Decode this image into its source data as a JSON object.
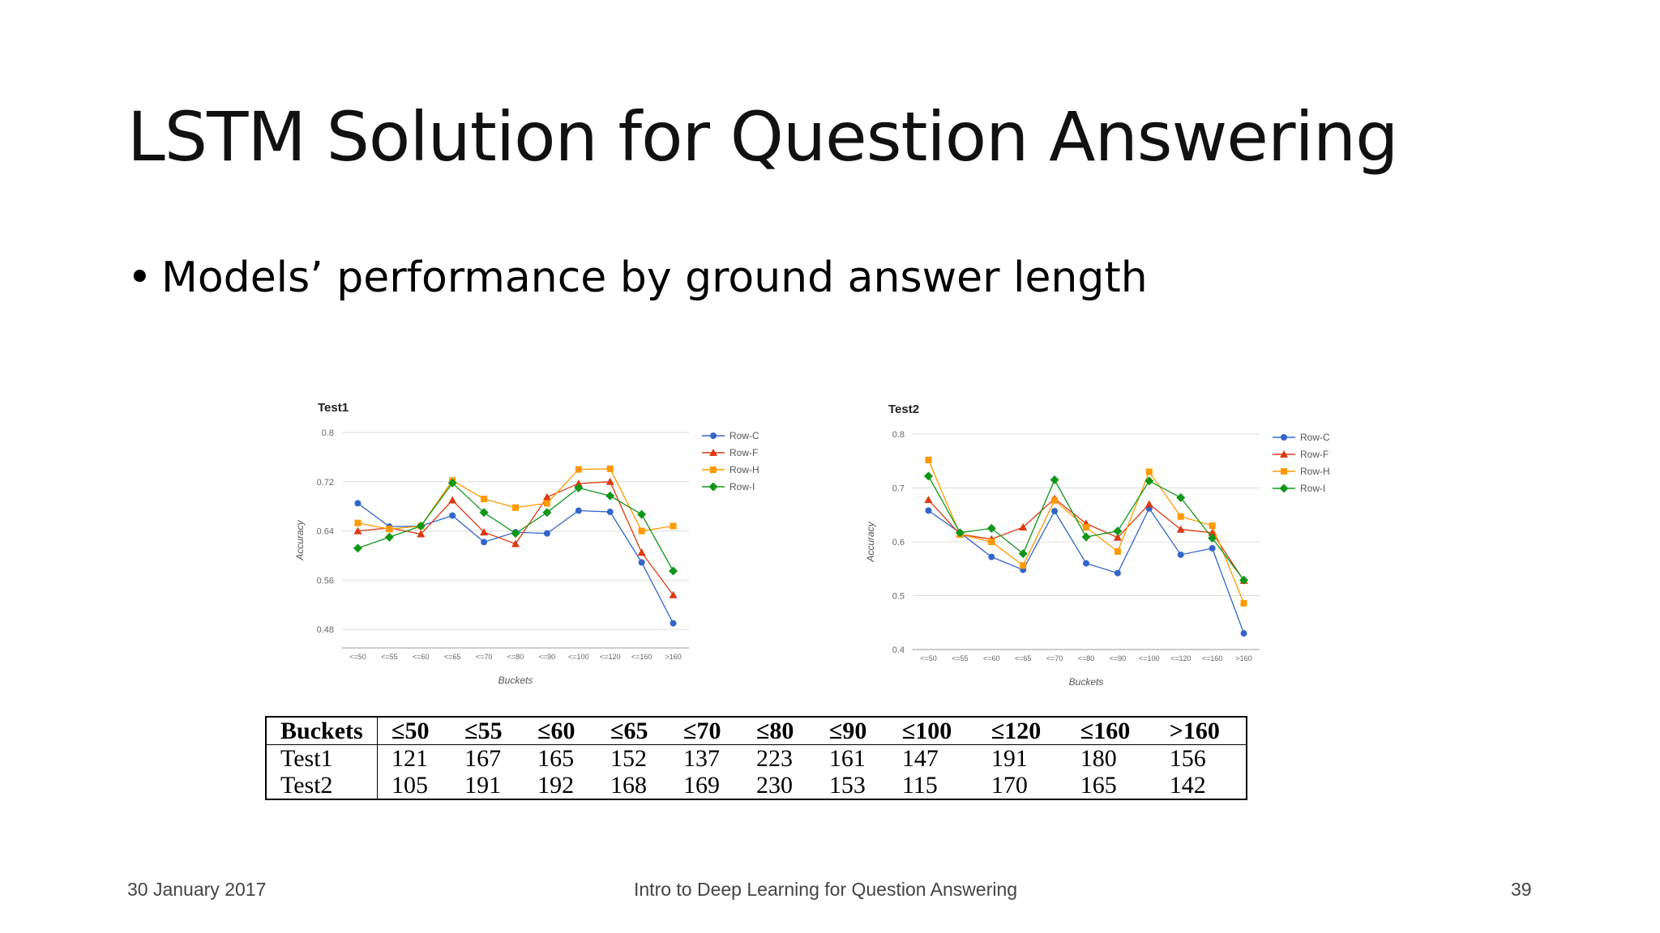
{
  "slide": {
    "title": "LSTM Solution for Question Answering",
    "bullet_mark": "•",
    "bullet": "Models’ performance by ground answer length"
  },
  "footer": {
    "date": "30 January 2017",
    "center": "Intro to Deep Learning for Question Answering",
    "page": "39"
  },
  "chart_data": [
    {
      "type": "line",
      "title": "Test1",
      "xlabel": "Buckets",
      "ylabel": "Accuracy",
      "categories": [
        "<=50",
        "<=55",
        "<=60",
        "<=65",
        "<=70",
        "<=80",
        "<=90",
        "<=100",
        "<=120",
        "<=160",
        ">160"
      ],
      "ylim": [
        0.45,
        0.8
      ],
      "yticks": [
        "0.8",
        "0.72",
        "0.64",
        "0.56",
        "0.48"
      ],
      "grid": true,
      "legend": "right",
      "series": [
        {
          "name": "Row-C",
          "color": "#3366cc",
          "marker": "circle",
          "values": [
            0.685,
            0.647,
            0.648,
            0.665,
            0.622,
            0.638,
            0.636,
            0.673,
            0.671,
            0.589,
            0.49
          ]
        },
        {
          "name": "Row-F",
          "color": "#dc3912",
          "marker": "triangle",
          "values": [
            0.64,
            0.645,
            0.635,
            0.69,
            0.638,
            0.619,
            0.695,
            0.717,
            0.72,
            0.605,
            0.536
          ]
        },
        {
          "name": "Row-H",
          "color": "#ff9900",
          "marker": "square",
          "values": [
            0.653,
            0.643,
            0.648,
            0.722,
            0.692,
            0.678,
            0.685,
            0.74,
            0.741,
            0.64,
            0.648
          ]
        },
        {
          "name": "Row-I",
          "color": "#109618",
          "marker": "diamond",
          "values": [
            0.612,
            0.63,
            0.648,
            0.718,
            0.67,
            0.636,
            0.67,
            0.71,
            0.697,
            0.667,
            0.575
          ]
        }
      ]
    },
    {
      "type": "line",
      "title": "Test2",
      "xlabel": "Buckets",
      "ylabel": "Accuracy",
      "categories": [
        "<=50",
        "<=55",
        "<=60",
        "<=65",
        "<=70",
        "<=80",
        "<=90",
        "<=100",
        "<=120",
        "<=160",
        ">160"
      ],
      "ylim": [
        0.4,
        0.8
      ],
      "yticks": [
        "0.8",
        "0.7",
        "0.6",
        "0.5",
        "0.4"
      ],
      "grid": true,
      "legend": "right",
      "series": [
        {
          "name": "Row-C",
          "color": "#3366cc",
          "marker": "circle",
          "values": [
            0.658,
            0.617,
            0.572,
            0.548,
            0.657,
            0.56,
            0.542,
            0.662,
            0.576,
            0.588,
            0.43
          ]
        },
        {
          "name": "Row-F",
          "color": "#dc3912",
          "marker": "triangle",
          "values": [
            0.678,
            0.614,
            0.605,
            0.627,
            0.68,
            0.634,
            0.608,
            0.67,
            0.623,
            0.617,
            0.528
          ]
        },
        {
          "name": "Row-H",
          "color": "#ff9900",
          "marker": "square",
          "values": [
            0.752,
            0.614,
            0.6,
            0.556,
            0.677,
            0.627,
            0.582,
            0.73,
            0.647,
            0.63,
            0.486
          ]
        },
        {
          "name": "Row-I",
          "color": "#109618",
          "marker": "diamond",
          "values": [
            0.722,
            0.617,
            0.625,
            0.578,
            0.715,
            0.609,
            0.62,
            0.713,
            0.682,
            0.607,
            0.529
          ]
        }
      ]
    }
  ],
  "table": {
    "header": [
      "Buckets",
      "≤50",
      "≤55",
      "≤60",
      "≤65",
      "≤70",
      "≤80",
      "≤90",
      "≤100",
      "≤120",
      "≤160",
      ">160"
    ],
    "rows": [
      [
        "Test1",
        "121",
        "167",
        "165",
        "152",
        "137",
        "223",
        "161",
        "147",
        "191",
        "180",
        "156"
      ],
      [
        "Test2",
        "105",
        "191",
        "192",
        "168",
        "169",
        "230",
        "153",
        "115",
        "170",
        "165",
        "142"
      ]
    ]
  }
}
